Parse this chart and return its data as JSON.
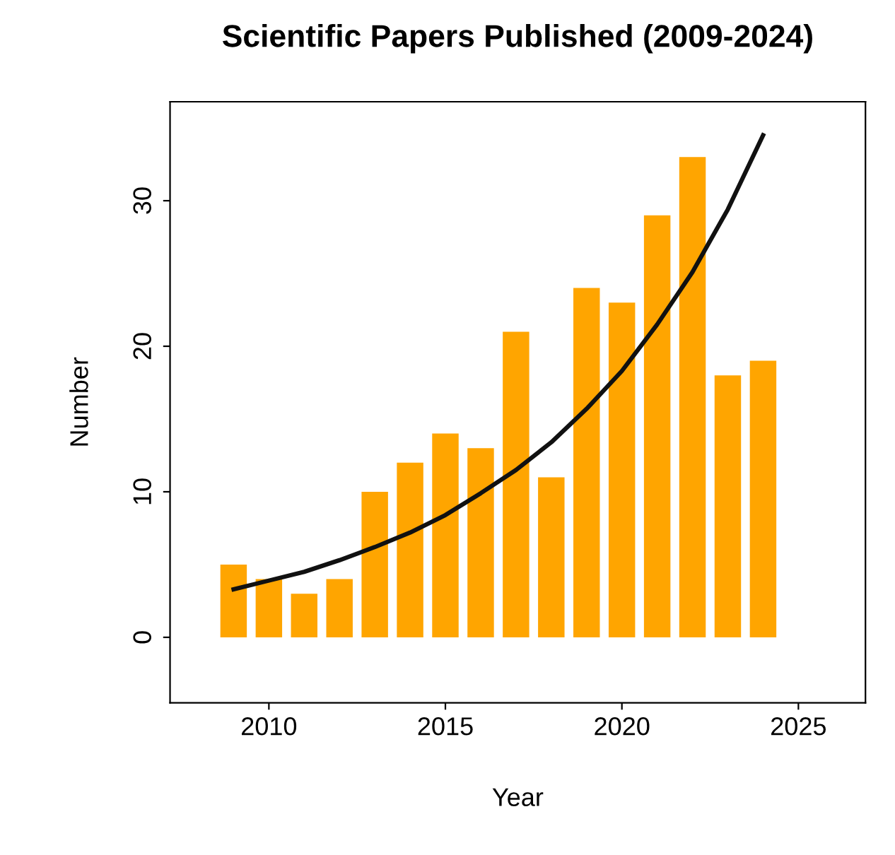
{
  "chart_data": {
    "type": "bar",
    "title": "Scientific Papers Published (2009-2024)",
    "xlabel": "Year",
    "ylabel": "Number",
    "x": [
      2009,
      2010,
      2011,
      2012,
      2013,
      2014,
      2015,
      2016,
      2017,
      2018,
      2019,
      2020,
      2021,
      2022,
      2023,
      2024
    ],
    "series": [
      {
        "color": "#ffa500",
        "values": [
          5,
          4,
          3,
          4,
          10,
          12,
          14,
          13,
          21,
          11,
          24,
          23,
          29,
          33,
          18,
          19
        ]
      },
      {
        "type": "line",
        "color": "#111111",
        "x": [
          2009,
          2010,
          2011,
          2012,
          2013,
          2014,
          2015,
          2016,
          2017,
          2018,
          2019,
          2020,
          2021,
          2022,
          2023,
          2024
        ],
        "values": [
          3.3,
          3.9,
          4.5,
          5.3,
          6.2,
          7.2,
          8.4,
          9.9,
          11.5,
          13.4,
          15.7,
          18.3,
          21.5,
          25.1,
          29.4,
          34.5
        ]
      }
    ],
    "xlim": [
      2007.2,
      2026.9
    ],
    "xticks": [
      2010,
      2015,
      2020,
      2025
    ],
    "ylim": [
      -4.5,
      36.8
    ],
    "yticks": [
      0,
      10,
      20,
      30
    ],
    "grid": false
  }
}
